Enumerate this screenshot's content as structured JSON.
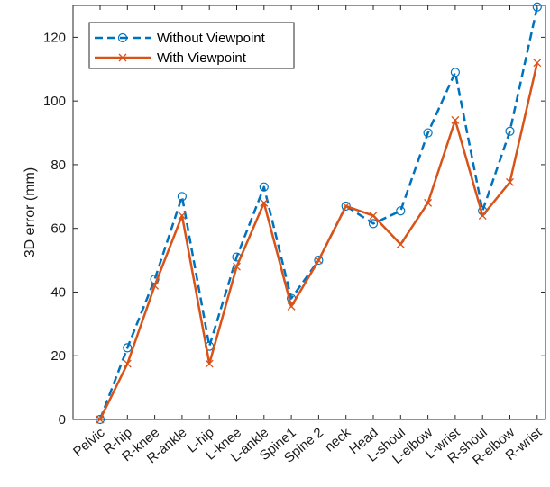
{
  "chart_data": {
    "type": "line",
    "title": "",
    "xlabel": "",
    "ylabel": "3D error (mm)",
    "categories": [
      "Pelvic",
      "R-hip",
      "R-knee",
      "R-ankle",
      "L-hip",
      "L-knee",
      "L-ankle",
      "Spine1",
      "Spine 2",
      "neck",
      "Head",
      "L-shoul",
      "L-elbow",
      "L-wrist",
      "R-shoul",
      "R-elbow",
      "R-wrist"
    ],
    "ylim": [
      0,
      130
    ],
    "yticks": [
      0,
      20,
      40,
      60,
      80,
      100,
      120
    ],
    "grid": false,
    "legend_position": "top-left",
    "series": [
      {
        "name": "Without Viewpoint",
        "color": "#0072bd",
        "line_style": "dashed",
        "marker": "circle",
        "values": [
          0,
          22.5,
          44,
          70,
          23,
          51,
          73,
          38,
          50,
          67,
          61.5,
          65.5,
          90,
          109,
          65.5,
          90.5,
          129.5
        ]
      },
      {
        "name": "With Viewpoint",
        "color": "#d95319",
        "line_style": "solid",
        "marker": "x",
        "values": [
          0,
          17.5,
          42,
          64,
          17.5,
          48,
          68,
          35.5,
          50,
          67,
          64,
          55,
          68,
          94,
          64,
          74.5,
          112
        ]
      }
    ]
  }
}
